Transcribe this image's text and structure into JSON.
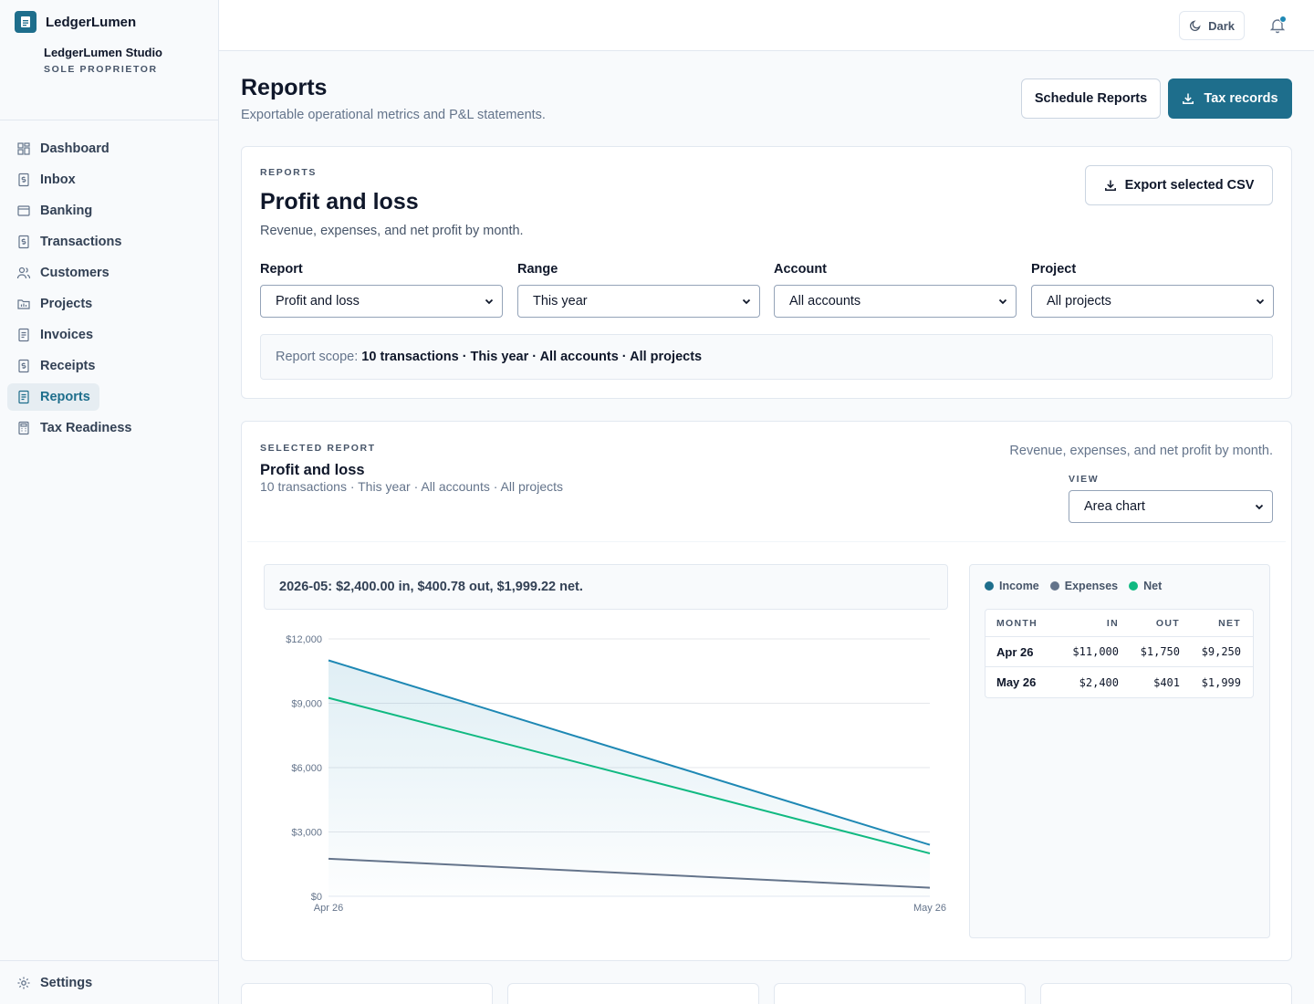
{
  "app": {
    "name": "LedgerLumen"
  },
  "org": {
    "name": "LedgerLumen Studio",
    "type": "SOLE PROPRIETOR"
  },
  "nav": [
    {
      "label": "Dashboard",
      "icon": "dashboard-icon"
    },
    {
      "label": "Inbox",
      "icon": "dollar-doc-icon"
    },
    {
      "label": "Banking",
      "icon": "bank-icon"
    },
    {
      "label": "Transactions",
      "icon": "dollar-doc-icon"
    },
    {
      "label": "Customers",
      "icon": "users-icon"
    },
    {
      "label": "Projects",
      "icon": "folder-icon"
    },
    {
      "label": "Invoices",
      "icon": "document-icon"
    },
    {
      "label": "Receipts",
      "icon": "dollar-doc-icon"
    },
    {
      "label": "Reports",
      "icon": "document-icon",
      "active": true
    },
    {
      "label": "Tax Readiness",
      "icon": "calculator-icon"
    }
  ],
  "settings_label": "Settings",
  "topbar": {
    "theme_label": "Dark"
  },
  "page": {
    "title": "Reports",
    "subtitle": "Exportable operational metrics and P&L statements.",
    "schedule_label": "Schedule Reports",
    "tax_label": "Tax records"
  },
  "report_card": {
    "eyebrow": "REPORTS",
    "title": "Profit and loss",
    "subtitle": "Revenue, expenses, and net profit by month.",
    "export_label": "Export selected CSV",
    "filters": [
      {
        "label": "Report",
        "value": "Profit and loss"
      },
      {
        "label": "Range",
        "value": "This year"
      },
      {
        "label": "Account",
        "value": "All accounts"
      },
      {
        "label": "Project",
        "value": "All projects"
      }
    ],
    "scope_label": "Report scope:",
    "scope_value": "10 transactions · This year · All accounts · All projects"
  },
  "selected": {
    "eyebrow": "SELECTED REPORT",
    "title": "Profit and loss",
    "subtitle": "10 transactions · This year · All accounts · All projects",
    "description": "Revenue, expenses, and net profit by month.",
    "view_label": "VIEW",
    "view_value": "Area chart",
    "tooltip": "2026-05: $2,400.00 in, $400.78 out, $1,999.22 net."
  },
  "legend": [
    {
      "name": "Income",
      "color": "#1e6e8c"
    },
    {
      "name": "Expenses",
      "color": "#64748b"
    },
    {
      "name": "Net",
      "color": "#10b981"
    }
  ],
  "table": {
    "headers": [
      "MONTH",
      "IN",
      "OUT",
      "NET"
    ],
    "rows": [
      [
        "Apr 26",
        "$11,000",
        "$1,750",
        "$9,250"
      ],
      [
        "May 26",
        "$2,400",
        "$401",
        "$1,999"
      ]
    ]
  },
  "chart_data": {
    "type": "area",
    "categories": [
      "Apr 26",
      "May 26"
    ],
    "series": [
      {
        "name": "Income",
        "values": [
          11000,
          2400
        ],
        "color": "#1e88b4"
      },
      {
        "name": "Expenses",
        "values": [
          1750,
          400.78
        ],
        "color": "#64748b"
      },
      {
        "name": "Net",
        "values": [
          9250,
          1999.22
        ],
        "color": "#10b981"
      }
    ],
    "yticks": [
      "$0",
      "$3,000",
      "$6,000",
      "$9,000",
      "$12,000"
    ],
    "ylim": [
      0,
      12000
    ],
    "grid": true
  }
}
